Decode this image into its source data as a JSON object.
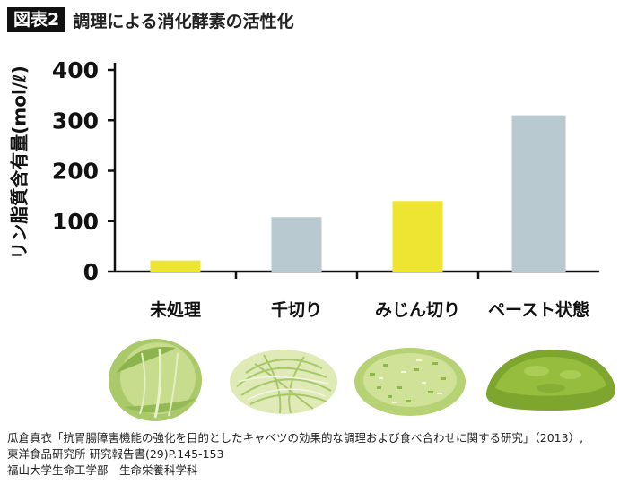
{
  "header": {
    "badge": "図表2",
    "title": "調理による消化酵素の活性化"
  },
  "chart_data": {
    "type": "bar",
    "ylabel": "リン脂質含有量(mol/ℓ)",
    "xlabel": "",
    "ylim": [
      0,
      420
    ],
    "yticks": [
      0,
      100,
      200,
      300,
      400
    ],
    "categories": [
      "未処理",
      "千切り",
      "みじん切り",
      "ペースト状態"
    ],
    "values": [
      22,
      108,
      140,
      310
    ],
    "colors": [
      "#ede532",
      "#b8c9cf",
      "#ede532",
      "#b8c9cf"
    ],
    "grid": false
  },
  "photos": [
    {
      "name": "whole-cabbage-image",
      "kind": "whole"
    },
    {
      "name": "shredded-cabbage-image",
      "kind": "shred"
    },
    {
      "name": "minced-cabbage-image",
      "kind": "mince"
    },
    {
      "name": "paste-cabbage-image",
      "kind": "paste"
    }
  ],
  "source": {
    "line1": "瓜倉真衣「抗胃腸障害機能の強化を目的としたキャベツの効果的な調理および食べ合わせに関する研究」（2013）,",
    "line2": "東洋食品研究所 研究報告書(29)P.145-153",
    "line3": "福山大学生命工学部　生命栄養科学科"
  }
}
